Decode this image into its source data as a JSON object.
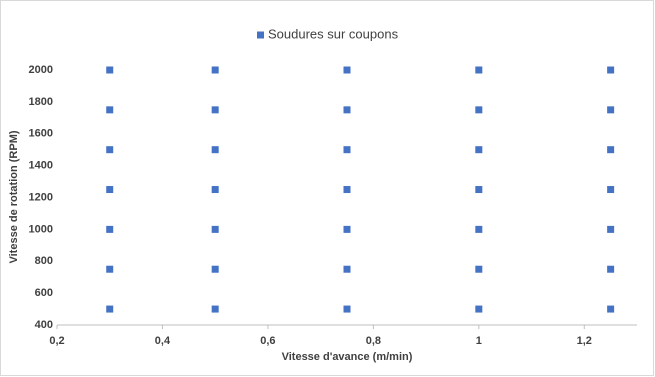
{
  "chart_data": {
    "type": "scatter",
    "x_label": "Vitesse d'avance (m/min)",
    "y_label": "Vitesse de rotation (RPM)",
    "x": [
      0.3,
      0.3,
      0.3,
      0.3,
      0.3,
      0.3,
      0.3,
      0.5,
      0.5,
      0.5,
      0.5,
      0.5,
      0.5,
      0.5,
      0.75,
      0.75,
      0.75,
      0.75,
      0.75,
      0.75,
      0.75,
      1,
      1,
      1,
      1,
      1,
      1,
      1,
      1.25,
      1.25,
      1.25,
      1.25,
      1.25,
      1.25,
      1.25
    ],
    "series": [
      {
        "name": "Soudures sur coupons",
        "color": "#4472c4",
        "values": [
          500,
          750,
          1000,
          1250,
          1500,
          1750,
          2000,
          500,
          750,
          1000,
          1250,
          1500,
          1750,
          2000,
          500,
          750,
          1000,
          1250,
          1500,
          1750,
          2000,
          500,
          750,
          1000,
          1250,
          1500,
          1750,
          2000,
          500,
          750,
          1000,
          1250,
          1500,
          1750,
          2000
        ]
      }
    ],
    "xlim": [
      0.2,
      1.3
    ],
    "xticks": [
      {
        "value": 0.2,
        "label": "0,2"
      },
      {
        "value": 0.4,
        "label": "0,4"
      },
      {
        "value": 0.6,
        "label": "0,6"
      },
      {
        "value": 0.8,
        "label": "0,8"
      },
      1,
      {
        "value": 1.2,
        "label": "1,2"
      }
    ],
    "ylim": [
      400,
      2000
    ],
    "yticks": [
      400,
      600,
      800,
      1000,
      1200,
      1400,
      1600,
      1800,
      2000
    ],
    "legend": "top",
    "grid": false
  }
}
